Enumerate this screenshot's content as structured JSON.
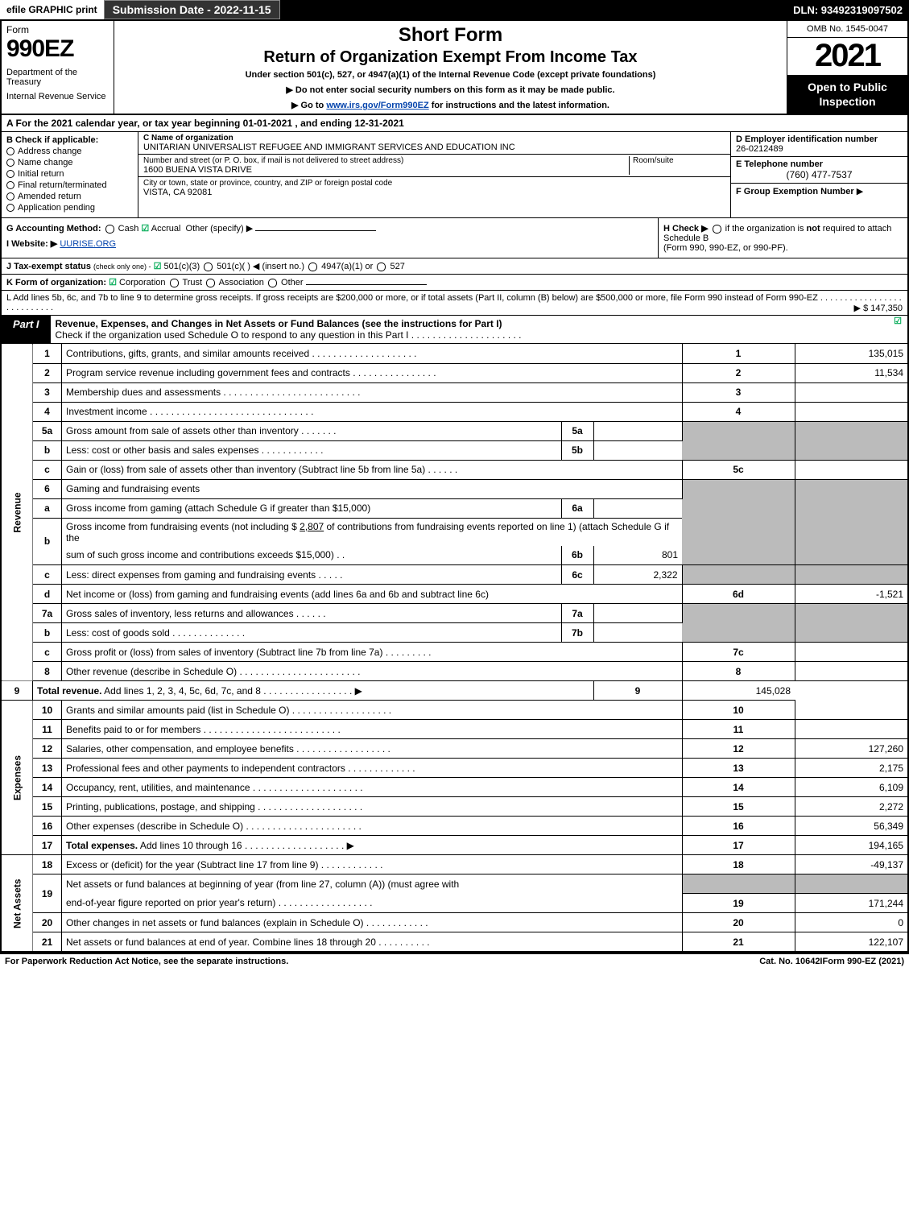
{
  "topbar": {
    "efile": "efile GRAPHIC print",
    "submission": "Submission Date - 2022-11-15",
    "dln": "DLN: 93492319097502"
  },
  "header": {
    "form_label": "Form",
    "form_number": "990EZ",
    "department": "Department of the Treasury",
    "irs": "Internal Revenue Service",
    "title1": "Short Form",
    "title2": "Return of Organization Exempt From Income Tax",
    "subtitle": "Under section 501(c), 527, or 4947(a)(1) of the Internal Revenue Code (except private foundations)",
    "directive1": "Do not enter social security numbers on this form as it may be made public.",
    "directive2_pre": "Go to ",
    "directive2_link": "www.irs.gov/Form990EZ",
    "directive2_post": " for instructions and the latest information.",
    "omb": "OMB No. 1545-0047",
    "year": "2021",
    "inspection": "Open to Public Inspection"
  },
  "row_a": {
    "text_pre": "A  For the 2021 calendar year, or tax year beginning ",
    "begin": "01-01-2021",
    "mid": " , and ending ",
    "end": "12-31-2021"
  },
  "section_b": {
    "heading": "B  Check if applicable:",
    "items": [
      "Address change",
      "Name change",
      "Initial return",
      "Final return/terminated",
      "Amended return",
      "Application pending"
    ]
  },
  "section_c": {
    "name_lbl": "C Name of organization",
    "name_val": "UNITARIAN UNIVERSALIST REFUGEE AND IMMIGRANT SERVICES AND EDUCATION INC",
    "addr_lbl": "Number and street (or P. O. box, if mail is not delivered to street address)",
    "room_lbl": "Room/suite",
    "addr_val": "1600 BUENA VISTA DRIVE",
    "city_lbl": "City or town, state or province, country, and ZIP or foreign postal code",
    "city_val": "VISTA, CA  92081"
  },
  "section_d": {
    "lbl": "D Employer identification number",
    "val": "26-0212489"
  },
  "section_e": {
    "lbl": "E Telephone number",
    "val": "(760) 477-7537"
  },
  "section_f": {
    "lbl": "F Group Exemption Number",
    "arrow": "▶"
  },
  "row_g": {
    "label": "G Accounting Method:",
    "cash": "Cash",
    "accrual": "Accrual",
    "other": "Other (specify) ▶"
  },
  "row_h": {
    "text1": "H  Check ▶ ",
    "text2": " if the organization is ",
    "not": "not",
    "text3": " required to attach Schedule B",
    "text4": "(Form 990, 990-EZ, or 990-PF)."
  },
  "row_i": {
    "label": "I Website: ▶",
    "val": "UURISE.ORG"
  },
  "row_j": {
    "label": "J Tax-exempt status",
    "sub": "(check only one) -",
    "opt1": "501(c)(3)",
    "opt2": "501(c)(  )",
    "insert": "◀ (insert no.)",
    "opt3": "4947(a)(1) or",
    "opt4": "527"
  },
  "row_k": {
    "label": "K Form of organization:",
    "opt1": "Corporation",
    "opt2": "Trust",
    "opt3": "Association",
    "opt4": "Other"
  },
  "row_l": {
    "text": "L Add lines 5b, 6c, and 7b to line 9 to determine gross receipts. If gross receipts are $200,000 or more, or if total assets (Part II, column (B) below) are $500,000 or more, file Form 990 instead of Form 990-EZ",
    "amount": "▶ $ 147,350"
  },
  "part1": {
    "label": "Part I",
    "title": "Revenue, Expenses, and Changes in Net Assets or Fund Balances (see the instructions for Part I)",
    "check_text": "Check if the organization used Schedule O to respond to any question in this Part I"
  },
  "sections": {
    "revenue": "Revenue",
    "expenses": "Expenses",
    "netassets": "Net Assets"
  },
  "lines": {
    "l1": {
      "n": "1",
      "d": "Contributions, gifts, grants, and similar amounts received",
      "rn": "1",
      "amt": "135,015"
    },
    "l2": {
      "n": "2",
      "d": "Program service revenue including government fees and contracts",
      "rn": "2",
      "amt": "11,534"
    },
    "l3": {
      "n": "3",
      "d": "Membership dues and assessments",
      "rn": "3",
      "amt": ""
    },
    "l4": {
      "n": "4",
      "d": "Investment income",
      "rn": "4",
      "amt": ""
    },
    "l5a": {
      "n": "5a",
      "d": "Gross amount from sale of assets other than inventory",
      "sl": "5a",
      "sv": ""
    },
    "l5b": {
      "n": "b",
      "d": "Less: cost or other basis and sales expenses",
      "sl": "5b",
      "sv": ""
    },
    "l5c": {
      "n": "c",
      "d": "Gain or (loss) from sale of assets other than inventory (Subtract line 5b from line 5a)",
      "rn": "5c",
      "amt": ""
    },
    "l6": {
      "n": "6",
      "d": "Gaming and fundraising events"
    },
    "l6a": {
      "n": "a",
      "d": "Gross income from gaming (attach Schedule G if greater than $15,000)",
      "sl": "6a",
      "sv": ""
    },
    "l6b": {
      "n": "b",
      "d1": "Gross income from fundraising events (not including $ ",
      "d1v": "2,807",
      "d1post": "        of contributions from fundraising events reported on line 1) (attach Schedule G if the",
      "d2": "sum of such gross income and contributions exceeds $15,000)",
      "sl": "6b",
      "sv": "801"
    },
    "l6c": {
      "n": "c",
      "d": "Less: direct expenses from gaming and fundraising events",
      "sl": "6c",
      "sv": "2,322"
    },
    "l6d": {
      "n": "d",
      "d": "Net income or (loss) from gaming and fundraising events (add lines 6a and 6b and subtract line 6c)",
      "rn": "6d",
      "amt": "-1,521"
    },
    "l7a": {
      "n": "7a",
      "d": "Gross sales of inventory, less returns and allowances",
      "sl": "7a",
      "sv": ""
    },
    "l7b": {
      "n": "b",
      "d": "Less: cost of goods sold",
      "sl": "7b",
      "sv": ""
    },
    "l7c": {
      "n": "c",
      "d": "Gross profit or (loss) from sales of inventory (Subtract line 7b from line 7a)",
      "rn": "7c",
      "amt": ""
    },
    "l8": {
      "n": "8",
      "d": "Other revenue (describe in Schedule O)",
      "rn": "8",
      "amt": ""
    },
    "l9": {
      "n": "9",
      "d": "Total revenue. Add lines 1, 2, 3, 4, 5c, 6d, 7c, and 8",
      "rn": "9",
      "amt": "145,028"
    },
    "l10": {
      "n": "10",
      "d": "Grants and similar amounts paid (list in Schedule O)",
      "rn": "10",
      "amt": ""
    },
    "l11": {
      "n": "11",
      "d": "Benefits paid to or for members",
      "rn": "11",
      "amt": ""
    },
    "l12": {
      "n": "12",
      "d": "Salaries, other compensation, and employee benefits",
      "rn": "12",
      "amt": "127,260"
    },
    "l13": {
      "n": "13",
      "d": "Professional fees and other payments to independent contractors",
      "rn": "13",
      "amt": "2,175"
    },
    "l14": {
      "n": "14",
      "d": "Occupancy, rent, utilities, and maintenance",
      "rn": "14",
      "amt": "6,109"
    },
    "l15": {
      "n": "15",
      "d": "Printing, publications, postage, and shipping",
      "rn": "15",
      "amt": "2,272"
    },
    "l16": {
      "n": "16",
      "d": "Other expenses (describe in Schedule O)",
      "rn": "16",
      "amt": "56,349"
    },
    "l17": {
      "n": "17",
      "d": "Total expenses. Add lines 10 through 16",
      "rn": "17",
      "amt": "194,165"
    },
    "l18": {
      "n": "18",
      "d": "Excess or (deficit) for the year (Subtract line 17 from line 9)",
      "rn": "18",
      "amt": "-49,137"
    },
    "l19": {
      "n": "19",
      "d1": "Net assets or fund balances at beginning of year (from line 27, column (A)) (must agree with",
      "d2": "end-of-year figure reported on prior year's return)",
      "rn": "19",
      "amt": "171,244"
    },
    "l20": {
      "n": "20",
      "d": "Other changes in net assets or fund balances (explain in Schedule O)",
      "rn": "20",
      "amt": "0"
    },
    "l21": {
      "n": "21",
      "d": "Net assets or fund balances at end of year. Combine lines 18 through 20",
      "rn": "21",
      "amt": "122,107"
    }
  },
  "footer": {
    "left": "For Paperwork Reduction Act Notice, see the separate instructions.",
    "center": "Cat. No. 10642I",
    "right_pre": "Form ",
    "right_bold": "990-EZ",
    "right_post": " (2021)"
  }
}
